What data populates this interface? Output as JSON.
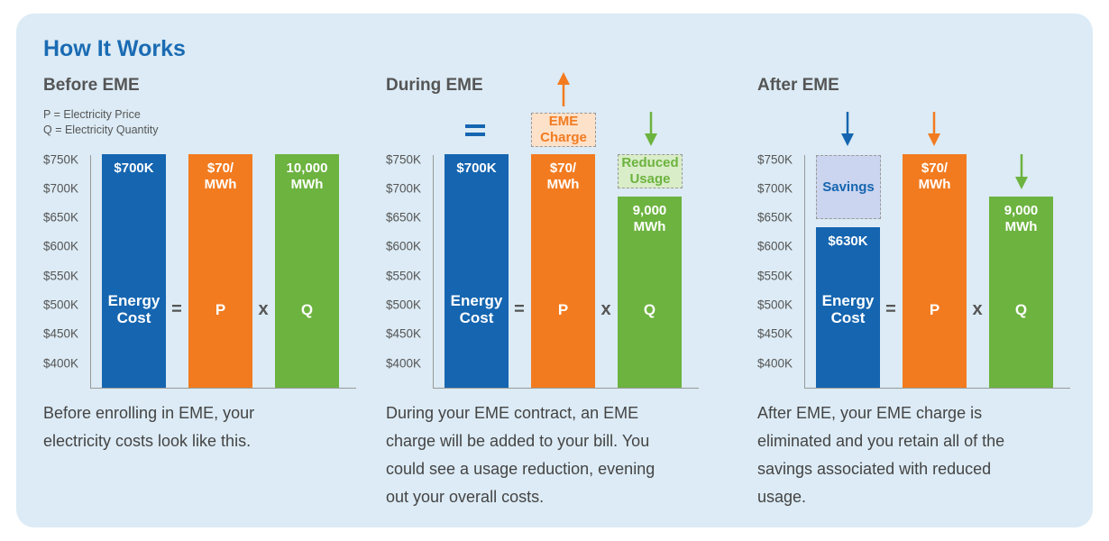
{
  "title": "How It Works",
  "colors": {
    "cost": "#1565b0",
    "price": "#f27b20",
    "quantity": "#6cb33f",
    "title": "#1a6bb3",
    "background": "#dcebf5"
  },
  "legend": [
    "P = Electricity Price",
    "Q = Electricity Quantity"
  ],
  "ticks": [
    "$750K",
    "$700K",
    "$650K",
    "$600K",
    "$550K",
    "$500K",
    "$450K",
    "$400K"
  ],
  "symbols": {
    "equals": "=",
    "times": "x",
    "cost_label_1": "Energy",
    "cost_label_2": "Cost",
    "p": "P",
    "q": "Q"
  },
  "panels": [
    {
      "heading": "Before EME",
      "cost": "$700K",
      "price_1": "$70/",
      "price_2": "MWh",
      "qty_1": "10,000",
      "qty_2": "MWh",
      "description": "Before enrolling in EME, your electricity costs look like this."
    },
    {
      "heading": "During EME",
      "cost": "$700K",
      "price_1": "$70/",
      "price_2": "MWh",
      "qty_1": "9,000",
      "qty_2": "MWh",
      "note_price_1": "EME",
      "note_price_2": "Charge",
      "note_qty_1": "Reduced",
      "note_qty_2": "Usage",
      "description": "During your EME contract, an EME charge will be added to your bill. You could see a usage reduction, evening out your overall costs."
    },
    {
      "heading": "After EME",
      "cost": "$630K",
      "price_1": "$70/",
      "price_2": "MWh",
      "qty_1": "9,000",
      "qty_2": "MWh",
      "note_cost": "Savings",
      "description": "After EME, your EME charge is eliminated  and you retain all of the savings associated with reduced usage."
    }
  ],
  "chart_data": [
    {
      "type": "bar",
      "title": "Before EME",
      "categories": [
        "Energy Cost",
        "P",
        "Q"
      ],
      "values": [
        "$700K",
        "$70/MWh",
        "10,000 MWh"
      ],
      "ylim": [
        "$400K",
        "$750K"
      ]
    },
    {
      "type": "bar",
      "title": "During EME",
      "categories": [
        "Energy Cost",
        "P",
        "Q"
      ],
      "values": [
        "$700K",
        "$70/MWh",
        "9,000 MWh"
      ],
      "annotations": [
        "=",
        "EME Charge (up)",
        "Reduced Usage (down)"
      ]
    },
    {
      "type": "bar",
      "title": "After EME",
      "categories": [
        "Energy Cost",
        "P",
        "Q"
      ],
      "values": [
        "$630K",
        "$70/MWh",
        "9,000 MWh"
      ],
      "annotations": [
        "Savings (down)",
        "price (down)",
        "quantity (down)"
      ]
    }
  ]
}
